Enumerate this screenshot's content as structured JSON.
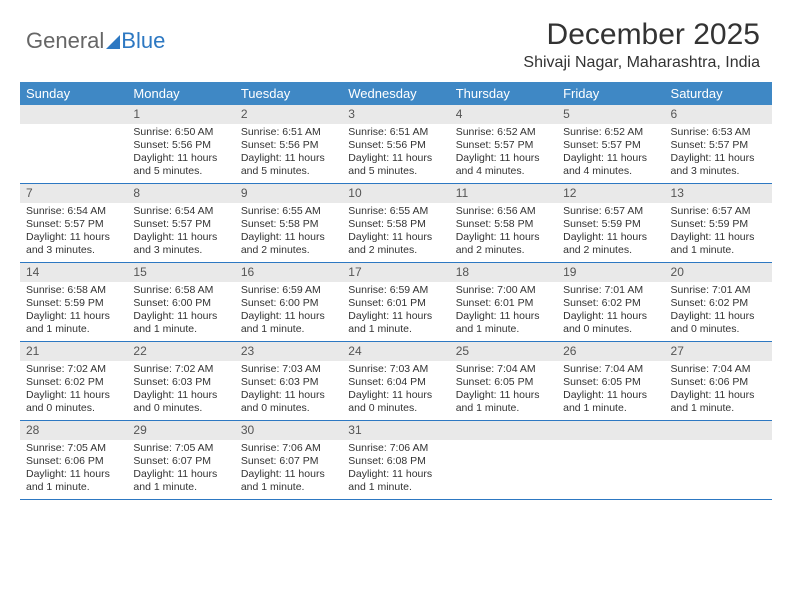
{
  "logo": {
    "word1": "General",
    "word2": "Blue"
  },
  "title": "December 2025",
  "subtitle": "Shivaji Nagar, Maharashtra, India",
  "colors": {
    "header_bg": "#3f88c5",
    "header_text": "#ffffff",
    "daynum_bg": "#e9e9e9",
    "week_border": "#2d78c2",
    "logo_accent": "#2d78c2",
    "body_text": "#333333",
    "page_bg": "#ffffff"
  },
  "typography": {
    "title_fontsize": 30,
    "subtitle_fontsize": 16,
    "dayheader_fontsize": 13,
    "daynum_fontsize": 12,
    "cell_fontsize": 10.5,
    "font_family": "Arial"
  },
  "day_headers": [
    "Sunday",
    "Monday",
    "Tuesday",
    "Wednesday",
    "Thursday",
    "Friday",
    "Saturday"
  ],
  "weeks": [
    [
      {
        "n": "",
        "sunrise": "",
        "sunset": "",
        "daylight": ""
      },
      {
        "n": "1",
        "sunrise": "Sunrise: 6:50 AM",
        "sunset": "Sunset: 5:56 PM",
        "daylight": "Daylight: 11 hours and 5 minutes."
      },
      {
        "n": "2",
        "sunrise": "Sunrise: 6:51 AM",
        "sunset": "Sunset: 5:56 PM",
        "daylight": "Daylight: 11 hours and 5 minutes."
      },
      {
        "n": "3",
        "sunrise": "Sunrise: 6:51 AM",
        "sunset": "Sunset: 5:56 PM",
        "daylight": "Daylight: 11 hours and 5 minutes."
      },
      {
        "n": "4",
        "sunrise": "Sunrise: 6:52 AM",
        "sunset": "Sunset: 5:57 PM",
        "daylight": "Daylight: 11 hours and 4 minutes."
      },
      {
        "n": "5",
        "sunrise": "Sunrise: 6:52 AM",
        "sunset": "Sunset: 5:57 PM",
        "daylight": "Daylight: 11 hours and 4 minutes."
      },
      {
        "n": "6",
        "sunrise": "Sunrise: 6:53 AM",
        "sunset": "Sunset: 5:57 PM",
        "daylight": "Daylight: 11 hours and 3 minutes."
      }
    ],
    [
      {
        "n": "7",
        "sunrise": "Sunrise: 6:54 AM",
        "sunset": "Sunset: 5:57 PM",
        "daylight": "Daylight: 11 hours and 3 minutes."
      },
      {
        "n": "8",
        "sunrise": "Sunrise: 6:54 AM",
        "sunset": "Sunset: 5:57 PM",
        "daylight": "Daylight: 11 hours and 3 minutes."
      },
      {
        "n": "9",
        "sunrise": "Sunrise: 6:55 AM",
        "sunset": "Sunset: 5:58 PM",
        "daylight": "Daylight: 11 hours and 2 minutes."
      },
      {
        "n": "10",
        "sunrise": "Sunrise: 6:55 AM",
        "sunset": "Sunset: 5:58 PM",
        "daylight": "Daylight: 11 hours and 2 minutes."
      },
      {
        "n": "11",
        "sunrise": "Sunrise: 6:56 AM",
        "sunset": "Sunset: 5:58 PM",
        "daylight": "Daylight: 11 hours and 2 minutes."
      },
      {
        "n": "12",
        "sunrise": "Sunrise: 6:57 AM",
        "sunset": "Sunset: 5:59 PM",
        "daylight": "Daylight: 11 hours and 2 minutes."
      },
      {
        "n": "13",
        "sunrise": "Sunrise: 6:57 AM",
        "sunset": "Sunset: 5:59 PM",
        "daylight": "Daylight: 11 hours and 1 minute."
      }
    ],
    [
      {
        "n": "14",
        "sunrise": "Sunrise: 6:58 AM",
        "sunset": "Sunset: 5:59 PM",
        "daylight": "Daylight: 11 hours and 1 minute."
      },
      {
        "n": "15",
        "sunrise": "Sunrise: 6:58 AM",
        "sunset": "Sunset: 6:00 PM",
        "daylight": "Daylight: 11 hours and 1 minute."
      },
      {
        "n": "16",
        "sunrise": "Sunrise: 6:59 AM",
        "sunset": "Sunset: 6:00 PM",
        "daylight": "Daylight: 11 hours and 1 minute."
      },
      {
        "n": "17",
        "sunrise": "Sunrise: 6:59 AM",
        "sunset": "Sunset: 6:01 PM",
        "daylight": "Daylight: 11 hours and 1 minute."
      },
      {
        "n": "18",
        "sunrise": "Sunrise: 7:00 AM",
        "sunset": "Sunset: 6:01 PM",
        "daylight": "Daylight: 11 hours and 1 minute."
      },
      {
        "n": "19",
        "sunrise": "Sunrise: 7:01 AM",
        "sunset": "Sunset: 6:02 PM",
        "daylight": "Daylight: 11 hours and 0 minutes."
      },
      {
        "n": "20",
        "sunrise": "Sunrise: 7:01 AM",
        "sunset": "Sunset: 6:02 PM",
        "daylight": "Daylight: 11 hours and 0 minutes."
      }
    ],
    [
      {
        "n": "21",
        "sunrise": "Sunrise: 7:02 AM",
        "sunset": "Sunset: 6:02 PM",
        "daylight": "Daylight: 11 hours and 0 minutes."
      },
      {
        "n": "22",
        "sunrise": "Sunrise: 7:02 AM",
        "sunset": "Sunset: 6:03 PM",
        "daylight": "Daylight: 11 hours and 0 minutes."
      },
      {
        "n": "23",
        "sunrise": "Sunrise: 7:03 AM",
        "sunset": "Sunset: 6:03 PM",
        "daylight": "Daylight: 11 hours and 0 minutes."
      },
      {
        "n": "24",
        "sunrise": "Sunrise: 7:03 AM",
        "sunset": "Sunset: 6:04 PM",
        "daylight": "Daylight: 11 hours and 0 minutes."
      },
      {
        "n": "25",
        "sunrise": "Sunrise: 7:04 AM",
        "sunset": "Sunset: 6:05 PM",
        "daylight": "Daylight: 11 hours and 1 minute."
      },
      {
        "n": "26",
        "sunrise": "Sunrise: 7:04 AM",
        "sunset": "Sunset: 6:05 PM",
        "daylight": "Daylight: 11 hours and 1 minute."
      },
      {
        "n": "27",
        "sunrise": "Sunrise: 7:04 AM",
        "sunset": "Sunset: 6:06 PM",
        "daylight": "Daylight: 11 hours and 1 minute."
      }
    ],
    [
      {
        "n": "28",
        "sunrise": "Sunrise: 7:05 AM",
        "sunset": "Sunset: 6:06 PM",
        "daylight": "Daylight: 11 hours and 1 minute."
      },
      {
        "n": "29",
        "sunrise": "Sunrise: 7:05 AM",
        "sunset": "Sunset: 6:07 PM",
        "daylight": "Daylight: 11 hours and 1 minute."
      },
      {
        "n": "30",
        "sunrise": "Sunrise: 7:06 AM",
        "sunset": "Sunset: 6:07 PM",
        "daylight": "Daylight: 11 hours and 1 minute."
      },
      {
        "n": "31",
        "sunrise": "Sunrise: 7:06 AM",
        "sunset": "Sunset: 6:08 PM",
        "daylight": "Daylight: 11 hours and 1 minute."
      },
      {
        "n": "",
        "sunrise": "",
        "sunset": "",
        "daylight": ""
      },
      {
        "n": "",
        "sunrise": "",
        "sunset": "",
        "daylight": ""
      },
      {
        "n": "",
        "sunrise": "",
        "sunset": "",
        "daylight": ""
      }
    ]
  ]
}
